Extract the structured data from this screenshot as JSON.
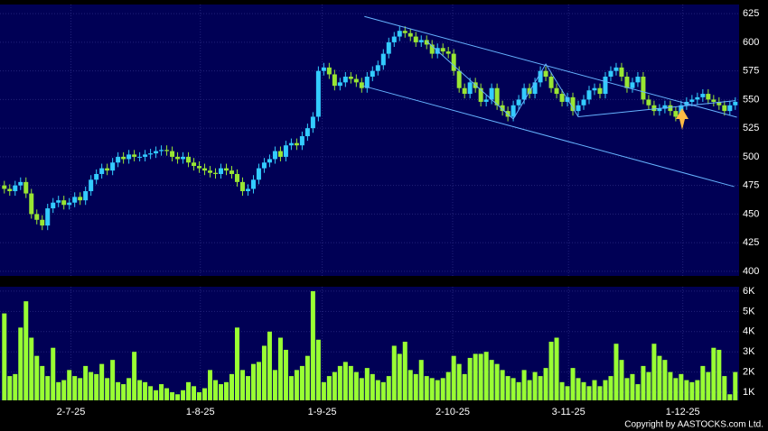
{
  "chart_data": {
    "type": "candlestick",
    "up_color": "#33ccff",
    "down_color": "#99e633",
    "volume_color": "#99ff33",
    "trend_color": "#66b3ff",
    "grid": true,
    "xlim": [
      -0.8,
      135.7
    ],
    "xticks": [
      {
        "value": 12.3,
        "label": "2-7-25"
      },
      {
        "value": 36.2,
        "label": "1-8-25"
      },
      {
        "value": 58.7,
        "label": "1-9-25"
      },
      {
        "value": 82.8,
        "label": "2-10-25"
      },
      {
        "value": 104.2,
        "label": "3-11-25"
      },
      {
        "value": 125.3,
        "label": "1-12-25"
      }
    ],
    "ylim": [
      396,
      633
    ],
    "yticks": [
      400,
      425,
      450,
      475,
      500,
      525,
      550,
      575,
      600,
      625
    ],
    "open": [
      475,
      472,
      470,
      475,
      478,
      468,
      450,
      445,
      440,
      455,
      460,
      462,
      458,
      460,
      465,
      462,
      470,
      480,
      485,
      490,
      488,
      495,
      500,
      498,
      502,
      500,
      500,
      502,
      503,
      505,
      506,
      505,
      500,
      498,
      500,
      495,
      492,
      490,
      488,
      486,
      485,
      490,
      488,
      485,
      478,
      470,
      472,
      480,
      490,
      495,
      498,
      505,
      500,
      510,
      512,
      510,
      518,
      525,
      535,
      575,
      578,
      572,
      562,
      565,
      570,
      568,
      565,
      560,
      570,
      575,
      580,
      590,
      600,
      605,
      610,
      608,
      605,
      600,
      602,
      598,
      590,
      595,
      592,
      590,
      575,
      560,
      555,
      565,
      560,
      548,
      550,
      560,
      545,
      540,
      535,
      545,
      550,
      560,
      555,
      565,
      575,
      570,
      560,
      555,
      548,
      552,
      540,
      545,
      550,
      558,
      560,
      555,
      570,
      575,
      578,
      570,
      560,
      565,
      570,
      550,
      545,
      540,
      542,
      545,
      540,
      535,
      545,
      548,
      550,
      552,
      555,
      550,
      548,
      545,
      540,
      545
    ],
    "high": [
      479,
      476,
      479,
      482,
      482,
      472,
      454,
      449,
      459,
      464,
      466,
      466,
      464,
      469,
      469,
      474,
      484,
      489,
      494,
      494,
      499,
      504,
      504,
      506,
      506,
      504,
      506,
      507,
      509,
      510,
      510,
      509,
      504,
      504,
      504,
      499,
      496,
      494,
      492,
      490,
      494,
      494,
      492,
      489,
      482,
      476,
      484,
      494,
      499,
      502,
      509,
      509,
      514,
      516,
      516,
      522,
      529,
      539,
      579,
      582,
      582,
      576,
      569,
      574,
      574,
      572,
      569,
      574,
      579,
      584,
      594,
      604,
      609,
      614,
      614,
      612,
      609,
      606,
      606,
      602,
      599,
      599,
      596,
      594,
      579,
      564,
      569,
      569,
      564,
      554,
      564,
      564,
      549,
      544,
      549,
      554,
      564,
      564,
      569,
      579,
      579,
      574,
      564,
      559,
      556,
      556,
      549,
      554,
      562,
      564,
      564,
      574,
      579,
      582,
      582,
      574,
      569,
      574,
      574,
      554,
      549,
      546,
      549,
      549,
      544,
      549,
      552,
      554,
      556,
      559,
      559,
      554,
      552,
      549,
      549,
      552
    ],
    "low": [
      468,
      466,
      466,
      471,
      464,
      446,
      441,
      436,
      436,
      451,
      456,
      454,
      454,
      456,
      458,
      458,
      466,
      476,
      481,
      484,
      484,
      491,
      494,
      494,
      496,
      496,
      496,
      498,
      499,
      501,
      501,
      496,
      494,
      494,
      491,
      488,
      486,
      484,
      482,
      481,
      481,
      484,
      481,
      474,
      466,
      466,
      468,
      476,
      486,
      491,
      494,
      496,
      496,
      506,
      506,
      506,
      514,
      521,
      531,
      571,
      568,
      558,
      558,
      561,
      564,
      561,
      556,
      556,
      566,
      571,
      576,
      586,
      596,
      601,
      604,
      601,
      596,
      596,
      594,
      586,
      586,
      588,
      586,
      571,
      556,
      551,
      551,
      556,
      544,
      544,
      546,
      541,
      536,
      531,
      531,
      541,
      546,
      551,
      551,
      561,
      566,
      556,
      551,
      544,
      544,
      536,
      536,
      541,
      546,
      554,
      551,
      551,
      566,
      571,
      566,
      556,
      556,
      561,
      546,
      541,
      536,
      536,
      538,
      536,
      531,
      531,
      541,
      544,
      546,
      548,
      546,
      544,
      541,
      536,
      536,
      541
    ],
    "close": [
      472,
      470,
      475,
      478,
      468,
      450,
      445,
      440,
      455,
      460,
      462,
      458,
      460,
      465,
      462,
      470,
      480,
      485,
      490,
      488,
      495,
      500,
      498,
      502,
      500,
      500,
      502,
      503,
      505,
      506,
      505,
      500,
      498,
      500,
      495,
      492,
      490,
      488,
      486,
      485,
      490,
      488,
      485,
      478,
      470,
      472,
      480,
      490,
      495,
      498,
      505,
      500,
      510,
      512,
      510,
      518,
      525,
      535,
      575,
      578,
      572,
      562,
      565,
      570,
      568,
      565,
      560,
      570,
      575,
      580,
      590,
      600,
      605,
      610,
      608,
      605,
      600,
      602,
      598,
      590,
      595,
      592,
      590,
      575,
      560,
      555,
      565,
      560,
      548,
      550,
      560,
      545,
      540,
      535,
      545,
      550,
      560,
      555,
      565,
      575,
      570,
      560,
      555,
      548,
      552,
      540,
      545,
      550,
      558,
      560,
      555,
      570,
      575,
      578,
      570,
      560,
      565,
      570,
      550,
      545,
      540,
      542,
      545,
      540,
      535,
      545,
      548,
      550,
      552,
      555,
      550,
      548,
      545,
      540,
      545,
      548
    ],
    "trendlines": [
      [
        [
          66.5,
          622.6
        ],
        [
          135.3,
          534.6
        ]
      ],
      [
        [
          66.2,
          562
        ],
        [
          134.8,
          474
        ]
      ],
      [
        [
          78,
          601
        ],
        [
          94,
          533
        ],
        [
          100,
          581
        ],
        [
          106,
          535
        ],
        [
          135,
          549
        ]
      ]
    ],
    "volume": {
      "ylim": [
        600,
        6220
      ],
      "yticks": [
        {
          "value": 1000,
          "label": "1K"
        },
        {
          "value": 2000,
          "label": "2K"
        },
        {
          "value": 3000,
          "label": "3K"
        },
        {
          "value": 4000,
          "label": "4K"
        },
        {
          "value": 5000,
          "label": "5K"
        },
        {
          "value": 6000,
          "label": "6K"
        }
      ],
      "values": [
        4900,
        1800,
        1900,
        4200,
        5500,
        3700,
        2800,
        2300,
        1800,
        3200,
        1500,
        1600,
        2100,
        1800,
        1700,
        2300,
        2000,
        1900,
        2400,
        1700,
        2600,
        1500,
        1400,
        1700,
        3000,
        1600,
        1500,
        1300,
        1100,
        1400,
        1200,
        1000,
        900,
        1100,
        1500,
        1300,
        1000,
        1200,
        2100,
        1600,
        1400,
        1500,
        1900,
        4200,
        2100,
        1800,
        2400,
        2500,
        3300,
        4000,
        2100,
        3700,
        3100,
        1800,
        2100,
        2300,
        2800,
        6000,
        3600,
        1500,
        1800,
        2000,
        2300,
        2500,
        2300,
        2000,
        1700,
        2200,
        1900,
        1600,
        1500,
        1800,
        3300,
        2900,
        3500,
        2100,
        1900,
        2600,
        1800,
        1700,
        1600,
        1700,
        2000,
        2800,
        2400,
        1900,
        2700,
        2900,
        2900,
        3000,
        2600,
        2400,
        2100,
        1800,
        1700,
        1500,
        2100,
        1600,
        2000,
        1800,
        2200,
        3500,
        3700,
        1500,
        1300,
        2200,
        1700,
        1500,
        1300,
        1600,
        1300,
        1600,
        1800,
        3400,
        2600,
        1700,
        1900,
        1400,
        2300,
        2000,
        3400,
        2800,
        2600,
        2000,
        1700,
        1900,
        1600,
        1500,
        1600,
        2300,
        2000,
        3200,
        3100,
        1800,
        900,
        2000
      ]
    },
    "copyright": "Copyright by AASTOCKS.com Ltd."
  }
}
